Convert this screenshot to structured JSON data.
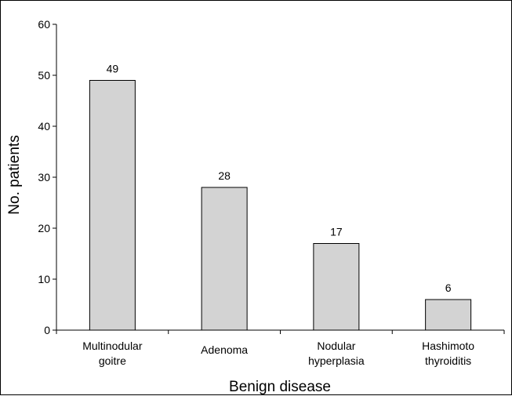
{
  "chart_data": {
    "type": "bar",
    "categories": [
      [
        "Multinodular",
        "goitre"
      ],
      [
        "Adenoma"
      ],
      [
        "Nodular",
        "hyperplasia"
      ],
      [
        "Hashimoto",
        "thyroiditis"
      ]
    ],
    "values": [
      49,
      28,
      17,
      6
    ],
    "data_labels": [
      "49",
      "28",
      "17",
      "6"
    ],
    "xlabel": "Benign disease",
    "ylabel": "No. patients",
    "ylim": [
      0,
      60
    ],
    "yticks": [
      0,
      10,
      20,
      30,
      40,
      50,
      60
    ],
    "grid": false,
    "legend": "none",
    "bar_color": "#d3d3d3",
    "bar_edge_color": "#000000"
  }
}
